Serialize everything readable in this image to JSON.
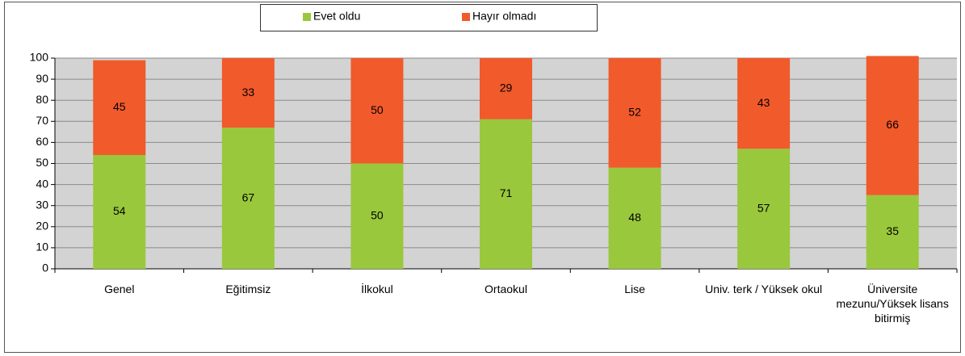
{
  "chart_data": {
    "type": "stacked_bar",
    "categories": [
      "Genel",
      "Eğitimsiz",
      "İlkokul",
      "Ortaokul",
      "Lise",
      "Univ. terk / Yüksek okul",
      "Üniversite mezunu/Yüksek lisans bitirmiş"
    ],
    "series": [
      {
        "name": "Evet oldu",
        "color": "#99c83c",
        "values": [
          54,
          67,
          50,
          71,
          48,
          57,
          35
        ]
      },
      {
        "name": "Hayır olmadı",
        "color": "#f15a2b",
        "values": [
          45,
          33,
          50,
          29,
          52,
          43,
          66
        ]
      }
    ],
    "ylim": [
      0,
      100
    ],
    "yticks": [
      0,
      10,
      20,
      30,
      40,
      50,
      60,
      70,
      80,
      90,
      100
    ],
    "grid": true,
    "legend": "top"
  }
}
